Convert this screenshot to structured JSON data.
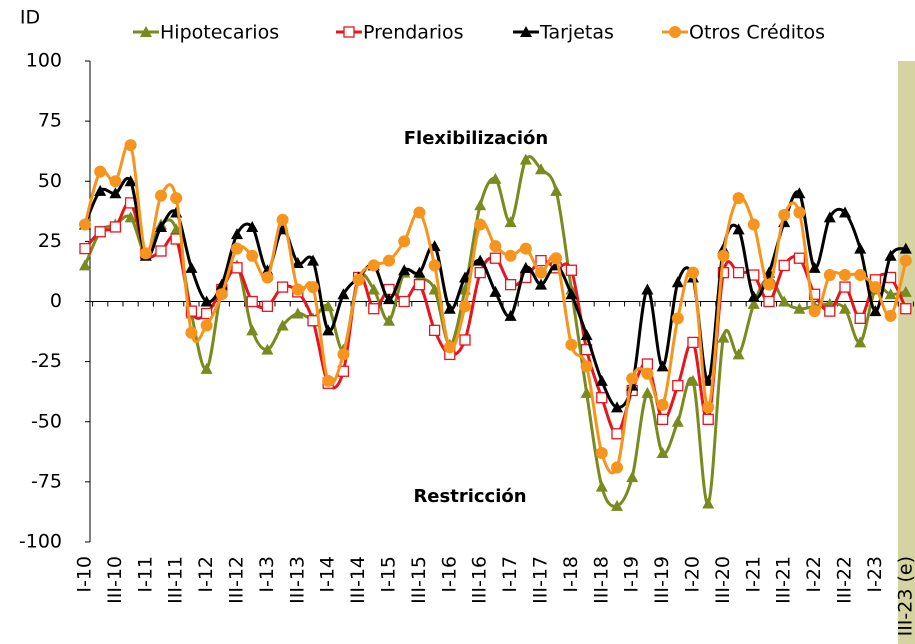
{
  "chart_data": {
    "type": "line",
    "y_label": "ID",
    "annotations": [
      "Flexibilización",
      "Restricción"
    ],
    "categories": [
      "I-10",
      null,
      "III-10",
      null,
      "I-11",
      null,
      "III-11",
      null,
      "I-12",
      null,
      "III-12",
      null,
      "I-13",
      null,
      "III-13",
      null,
      "I-14",
      null,
      "III-14",
      null,
      "I-15",
      null,
      "III-15",
      null,
      "I-16",
      null,
      "III-16",
      null,
      "I-17",
      null,
      "III-17",
      null,
      "I-18",
      null,
      "III-18",
      null,
      "I-19",
      null,
      "III-19",
      null,
      "I-20",
      null,
      "III-20",
      null,
      "I-21",
      null,
      "III-21",
      null,
      "I-22",
      null,
      "III-22",
      null,
      "I-23",
      null,
      "III-23 (e)"
    ],
    "ylim": [
      -100,
      100
    ],
    "yticks": [
      -100,
      -75,
      -50,
      -25,
      0,
      25,
      50,
      75,
      100
    ],
    "series": [
      {
        "name": "Hipotecarios",
        "color": "#7a8a1e",
        "marker": "triangle",
        "values": [
          15,
          29,
          32,
          35,
          20,
          32,
          30,
          -5,
          -28,
          5,
          15,
          -12,
          -20,
          -10,
          -5,
          -7,
          -2,
          -20,
          10,
          5,
          -8,
          12,
          10,
          5,
          -18,
          5,
          40,
          51,
          33,
          59,
          55,
          46,
          5,
          -38,
          -77,
          -85,
          -73,
          -38,
          -63,
          -50,
          -33,
          -84,
          -15,
          -22,
          -1,
          10,
          0,
          -3,
          -2,
          -1,
          -3,
          -17,
          5,
          3,
          4
        ]
      },
      {
        "name": "Prendarios",
        "color": "#e8141e",
        "marker": "square",
        "values": [
          22,
          29,
          31,
          41,
          20,
          21,
          26,
          -4,
          -5,
          5,
          14,
          0,
          -2,
          6,
          4,
          -8,
          -34,
          -29,
          10,
          -3,
          5,
          0,
          7,
          -12,
          -22,
          -16,
          12,
          18,
          7,
          10,
          17,
          14,
          13,
          -20,
          -40,
          -55,
          -37,
          -26,
          -49,
          -35,
          -17,
          -49,
          12,
          12,
          11,
          0,
          15,
          18,
          3,
          -4,
          6,
          -7,
          9,
          10,
          -3
        ]
      },
      {
        "name": "Tarjetas",
        "color": "#000000",
        "marker": "triangle",
        "values": [
          32,
          46,
          45,
          50,
          19,
          31,
          37,
          14,
          0,
          7,
          28,
          31,
          13,
          30,
          16,
          17,
          -12,
          3,
          10,
          15,
          1,
          13,
          12,
          23,
          -3,
          10,
          17,
          4,
          -6,
          14,
          7,
          15,
          3,
          -14,
          -33,
          -44,
          -35,
          5,
          -27,
          8,
          10,
          -33,
          22,
          30,
          2,
          12,
          33,
          45,
          14,
          35,
          37,
          22,
          -4,
          19,
          22
        ]
      },
      {
        "name": "Otros Créditos",
        "color": "#f7941d",
        "marker": "circle",
        "values": [
          32,
          54,
          50,
          65,
          20,
          44,
          43,
          -13,
          -10,
          3,
          22,
          19,
          10,
          34,
          5,
          6,
          -33,
          -22,
          9,
          15,
          17,
          25,
          37,
          15,
          -19,
          -2,
          32,
          23,
          19,
          22,
          12,
          18,
          -18,
          -27,
          -63,
          -69,
          -32,
          -30,
          -43,
          -7,
          12,
          -44,
          19,
          43,
          32,
          7,
          36,
          37,
          -4,
          11,
          11,
          11,
          6,
          -6,
          17
        ]
      }
    ]
  }
}
